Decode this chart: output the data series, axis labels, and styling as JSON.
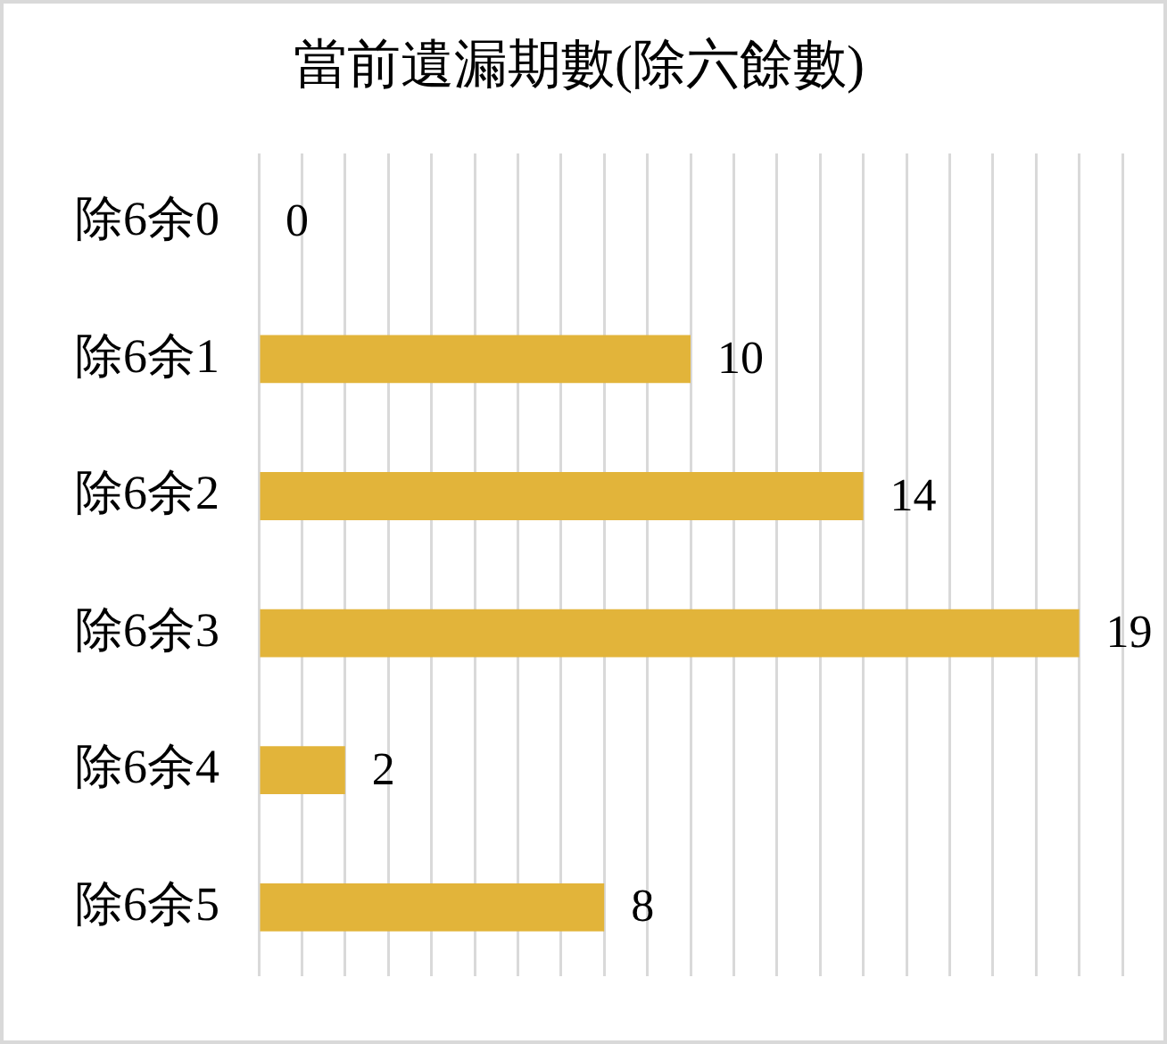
{
  "chart_data": {
    "type": "bar",
    "title": "當前遺漏期數(除六餘數)",
    "categories": [
      "除6余0",
      "除6余1",
      "除6余2",
      "除6余3",
      "除6余4",
      "除6余5"
    ],
    "values": [
      0,
      10,
      14,
      19,
      2,
      8
    ],
    "color": "#e2b43a",
    "orientation": "horizontal",
    "xlim": [
      0,
      20
    ],
    "xticks": [
      0,
      1,
      2,
      3,
      4,
      5,
      6,
      7,
      8,
      9,
      10,
      11,
      12,
      13,
      14,
      15,
      16,
      17,
      18,
      19,
      20
    ],
    "grid": "x",
    "tick_labels": "y",
    "data_labels": true
  }
}
